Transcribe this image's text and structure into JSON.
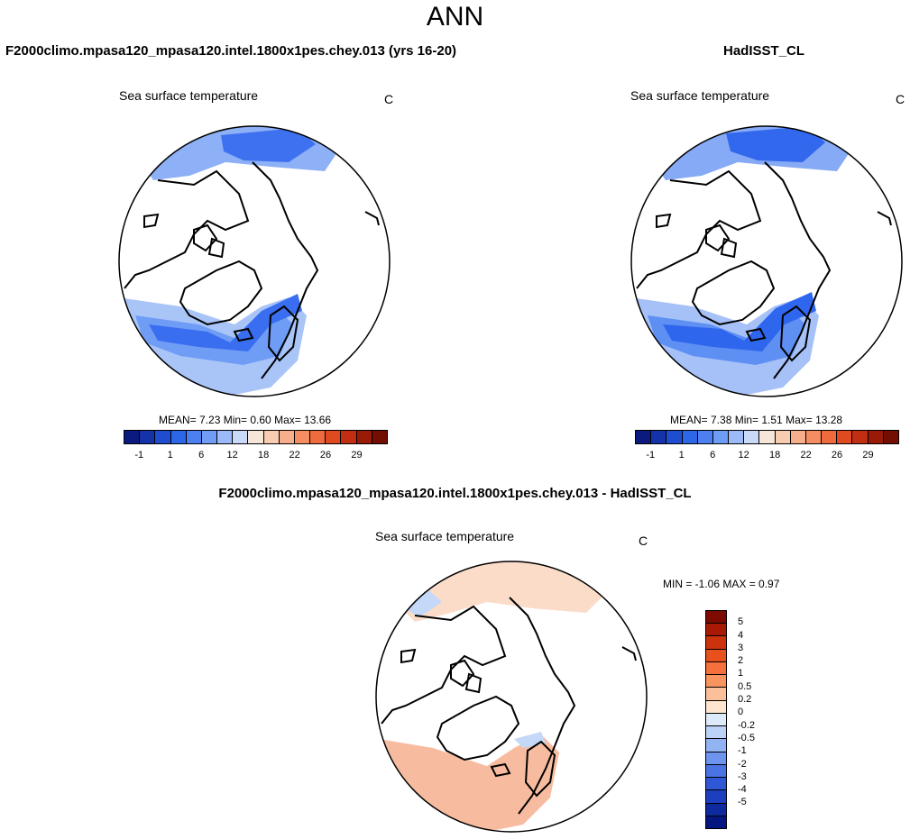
{
  "title": "ANN",
  "left_panel": {
    "title": "F2000climo.mpasa120_mpasa120.intel.1800x1pes.chey.013 (yrs 16-20)",
    "variable": "Sea surface temperature",
    "units": "C",
    "stats": "MEAN=  7.23  Min=  0.60  Max=  13.66"
  },
  "right_panel": {
    "title": "HadISST_CL",
    "variable": "Sea surface temperature",
    "units": "C",
    "stats": "MEAN=  7.38  Min=  1.51  Max=  13.28"
  },
  "diff_panel": {
    "title": "F2000climo.mpasa120_mpasa120.intel.1800x1pes.chey.013 - HadISST_CL",
    "variable": "Sea surface temperature",
    "units": "C",
    "stats": "MIN =  -1.06 MAX =   0.97"
  },
  "mean_colorbar": {
    "colors": [
      "#0a1a7e",
      "#1433a8",
      "#1e4dd0",
      "#2d66e6",
      "#4c80f0",
      "#6f9cf5",
      "#9bbaf7",
      "#c8daf8",
      "#f6e6d8",
      "#f8ccb0",
      "#f7ae8a",
      "#f48d62",
      "#ef6a3c",
      "#e04a21",
      "#c22e12",
      "#9a1a08",
      "#740e02"
    ],
    "tick_labels": [
      "-1",
      "1",
      "6",
      "12",
      "18",
      "22",
      "26",
      "29"
    ]
  },
  "diff_colorbar": {
    "colors": [
      "#7e0b02",
      "#a81a06",
      "#cc320e",
      "#e8501e",
      "#f5703a",
      "#f89460",
      "#fbc09a",
      "#fde5cf",
      "#dceaf9",
      "#bcd3f7",
      "#93b4f3",
      "#6d94ee",
      "#4a74e4",
      "#2f58d6",
      "#1d3fbf",
      "#0f299e",
      "#061680"
    ],
    "tick_labels": [
      "5",
      "4",
      "3",
      "2",
      "1",
      "0.5",
      "0.2",
      "0",
      "-0.2",
      "-0.5",
      "-1",
      "-2",
      "-3",
      "-4",
      "-5"
    ]
  },
  "colors": {
    "model_atlantic_deep": "#3a6ef0",
    "model_atlantic_mid": "#6f9cf5",
    "model_atlantic_light": "#a9c5f8",
    "model_pacific_deep": "#3e71f0",
    "model_pacific_light": "#8db0f6",
    "obs_atlantic_deep": "#2f66ee",
    "obs_atlantic_mid": "#5e8ff3",
    "obs_atlantic_light": "#a5c1f7",
    "obs_pacific_deep": "#3268ee",
    "obs_pacific_light": "#86aaf5",
    "diff_warm": "#f7bca0",
    "diff_warm_light": "#fbdcc8",
    "diff_cool": "#c4d8f7"
  }
}
